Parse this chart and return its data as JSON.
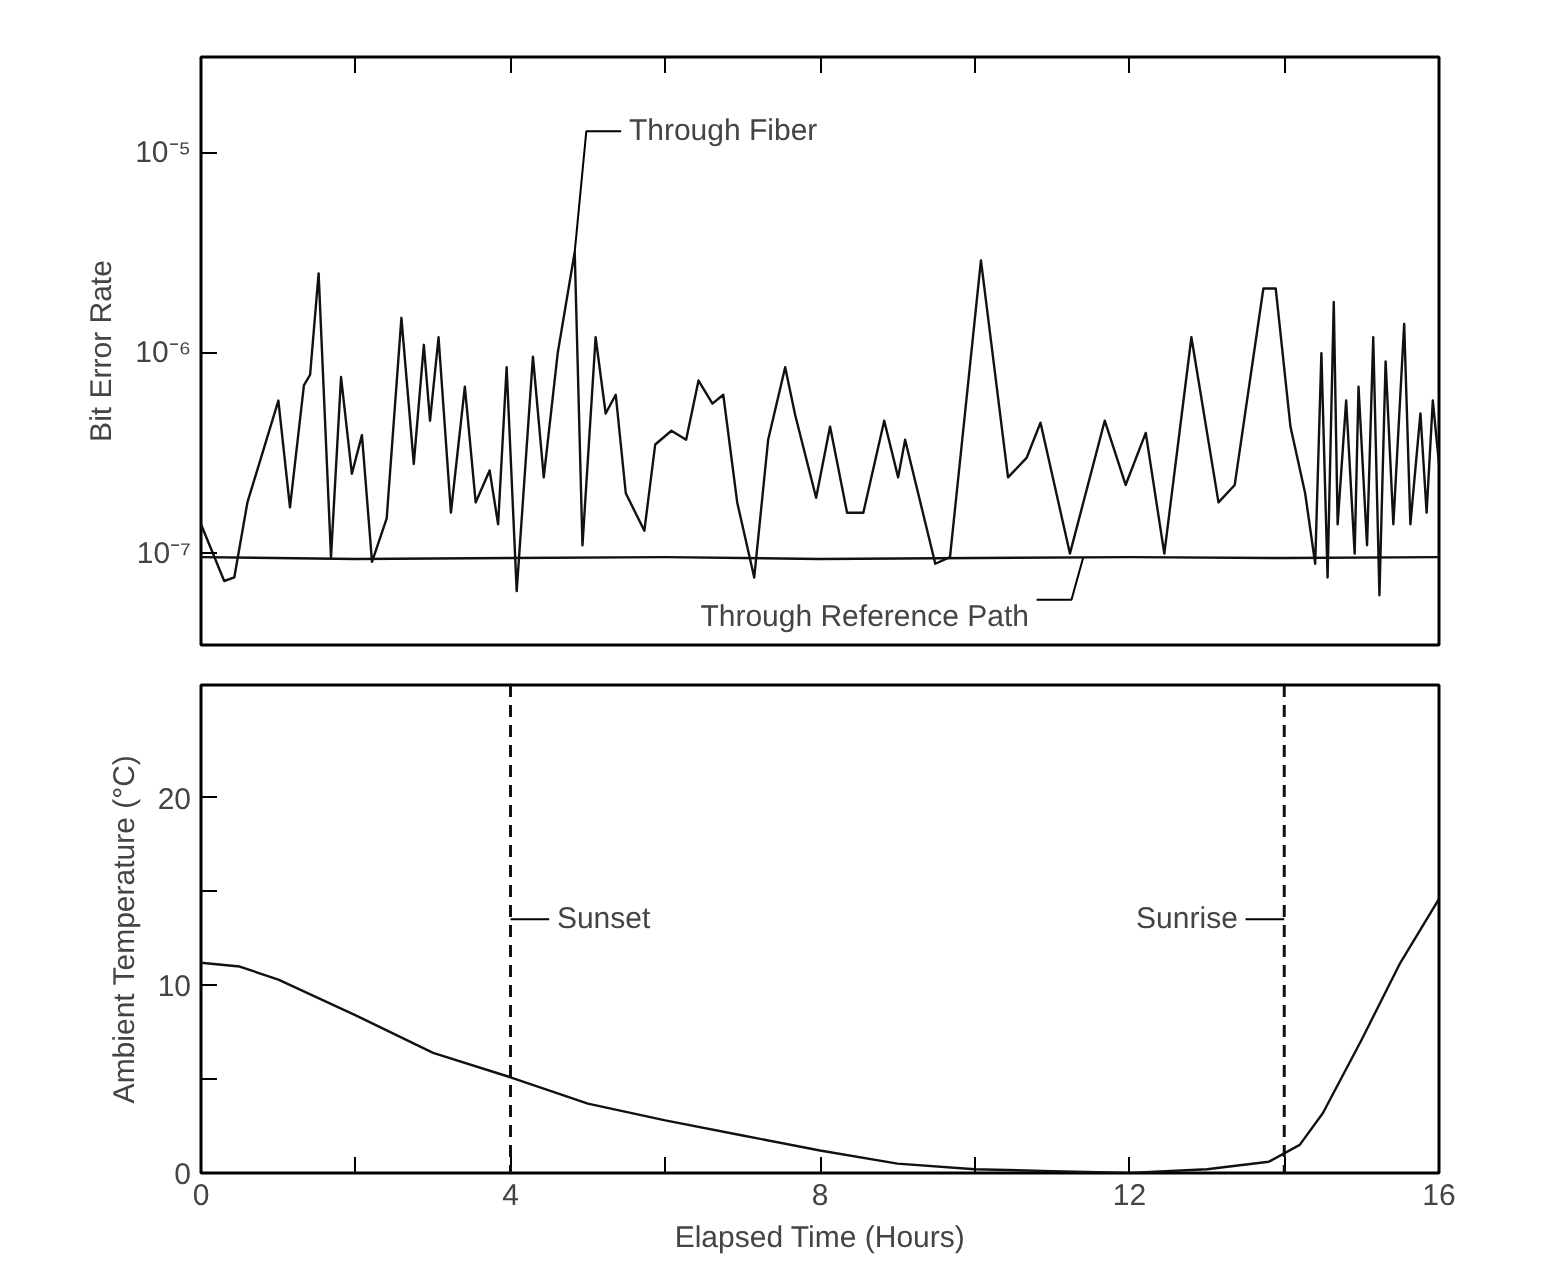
{
  "chart_data": [
    {
      "type": "line",
      "ylabel": "Bit Error Rate",
      "log": "y",
      "grid": false,
      "marker": "none",
      "line_style": "solid",
      "tick_labels": "y",
      "xlim": [
        0,
        16
      ],
      "xticks": [
        0,
        {
          "value": 2,
          "label": null
        },
        4,
        {
          "value": 6,
          "label": null
        },
        8,
        {
          "value": 10,
          "label": null
        },
        12,
        {
          "value": 14,
          "label": null
        },
        16
      ],
      "ylim": [
        3.5e-08,
        3e-05
      ],
      "yticks": [
        {
          "value": 1e-07,
          "label": "10⁻⁷"
        },
        {
          "value": 1e-06,
          "label": "10⁻⁶"
        },
        {
          "value": 1e-05,
          "label": "10⁻⁵"
        }
      ],
      "series": [
        {
          "color": "#111111",
          "x": [
            0,
            0.3,
            0.43,
            0.6,
            1.0,
            1.15,
            1.33,
            1.41,
            1.52,
            1.68,
            1.81,
            1.95,
            2.08,
            2.21,
            2.4,
            2.59,
            2.75,
            2.88,
            2.96,
            3.07,
            3.23,
            3.41,
            3.55,
            3.73,
            3.84,
            3.95,
            4.08,
            4.29,
            4.43,
            4.61,
            4.83,
            4.93,
            5.1,
            5.23,
            5.36,
            5.49,
            5.73,
            5.87,
            6.08,
            6.27,
            6.43,
            6.61,
            6.75,
            6.93,
            7.15,
            7.33,
            7.55,
            7.68,
            7.95,
            8.13,
            8.35,
            8.56,
            8.83,
            9.01,
            9.1,
            9.49,
            9.68,
            10.08,
            10.43,
            10.67,
            10.85,
            11.23,
            11.68,
            11.95,
            12.21,
            12.45,
            12.8,
            13.15,
            13.36,
            13.73,
            13.89,
            14.08,
            14.27,
            14.4,
            14.48,
            14.56,
            14.64,
            14.69,
            14.8,
            14.91,
            14.96,
            15.07,
            15.15,
            15.23,
            15.31,
            15.41,
            15.55,
            15.63,
            15.76,
            15.84,
            15.92,
            16.0
          ],
          "values": [
            1.4e-07,
            7.3e-08,
            7.6e-08,
            1.8e-07,
            5.8e-07,
            1.7e-07,
            6.9e-07,
            7.8e-07,
            2.5e-06,
            9.6e-08,
            7.6e-07,
            2.5e-07,
            3.9e-07,
            9.1e-08,
            1.5e-07,
            1.5e-06,
            2.8e-07,
            1.1e-06,
            4.6e-07,
            1.2e-06,
            1.6e-07,
            6.8e-07,
            1.8e-07,
            2.6e-07,
            1.4e-07,
            8.5e-07,
            6.5e-08,
            9.6e-07,
            2.4e-07,
            1e-06,
            3.2e-06,
            1.1e-07,
            1.2e-06,
            5e-07,
            6.2e-07,
            2e-07,
            1.3e-07,
            3.5e-07,
            4.1e-07,
            3.7e-07,
            7.3e-07,
            5.6e-07,
            6.2e-07,
            1.8e-07,
            7.6e-08,
            3.7e-07,
            8.5e-07,
            4.9e-07,
            1.9e-07,
            4.3e-07,
            1.6e-07,
            1.6e-07,
            4.6e-07,
            2.4e-07,
            3.7e-07,
            8.9e-08,
            9.6e-08,
            2.9e-06,
            2.4e-07,
            3e-07,
            4.5e-07,
            1e-07,
            4.6e-07,
            2.2e-07,
            4e-07,
            1e-07,
            1.2e-06,
            1.8e-07,
            2.2e-07,
            2.1e-06,
            2.1e-06,
            4.3e-07,
            2e-07,
            8.9e-08,
            1e-06,
            7.6e-08,
            1.8e-06,
            1.4e-07,
            5.8e-07,
            1e-07,
            6.8e-07,
            1.1e-07,
            1.2e-06,
            6.2e-08,
            9.1e-07,
            1.4e-07,
            1.4e-06,
            1.4e-07,
            5e-07,
            1.6e-07,
            5.8e-07,
            2.8e-07
          ]
        },
        {
          "color": "#111111",
          "x": [
            0,
            2,
            4,
            6,
            8,
            10,
            12,
            14,
            16
          ],
          "values": [
            9.6e-08,
            9.4e-08,
            9.5e-08,
            9.6e-08,
            9.4e-08,
            9.5e-08,
            9.6e-08,
            9.5e-08,
            9.6e-08
          ]
        }
      ],
      "annotations": [
        {
          "text": "Through Fiber",
          "x": 4.83,
          "y": 3.2e-06
        },
        {
          "text": "Through Reference Path",
          "x": 11.4,
          "y": 9.5e-08
        }
      ]
    },
    {
      "type": "line",
      "xlabel": "Elapsed Time (Hours)",
      "ylabel": "Ambient Temperature (°C)",
      "grid": false,
      "marker": "none",
      "line_style": "solid",
      "xlim": [
        0,
        16
      ],
      "xticks": [
        0,
        {
          "value": 2,
          "label": null
        },
        4,
        {
          "value": 6,
          "label": null
        },
        8,
        {
          "value": 10,
          "label": null
        },
        12,
        {
          "value": 14,
          "label": null
        },
        16
      ],
      "ylim": [
        0,
        26
      ],
      "yticks": [
        0,
        {
          "value": 5,
          "label": null
        },
        10,
        {
          "value": 15,
          "label": null
        },
        20
      ],
      "series": [
        {
          "color": "#111111",
          "x": [
            0,
            0.5,
            1,
            2,
            3,
            4,
            5,
            6,
            7,
            8,
            9,
            10,
            11,
            12,
            13,
            13.8,
            14.2,
            14.5,
            15,
            15.5,
            16
          ],
          "values": [
            11.2,
            11.0,
            10.3,
            8.4,
            6.4,
            5.1,
            3.7,
            2.8,
            2.0,
            1.2,
            0.5,
            0.2,
            0.1,
            0,
            0.2,
            0.6,
            1.5,
            3.2,
            7.1,
            11.2,
            14.6
          ]
        }
      ],
      "ref_lines": [
        {
          "axis": "x",
          "value": 4,
          "label": "Sunset",
          "line_style": "dashed",
          "color": "#111111"
        },
        {
          "axis": "x",
          "value": 14,
          "label": "Sunrise",
          "line_style": "dashed",
          "color": "#111111"
        }
      ]
    }
  ]
}
